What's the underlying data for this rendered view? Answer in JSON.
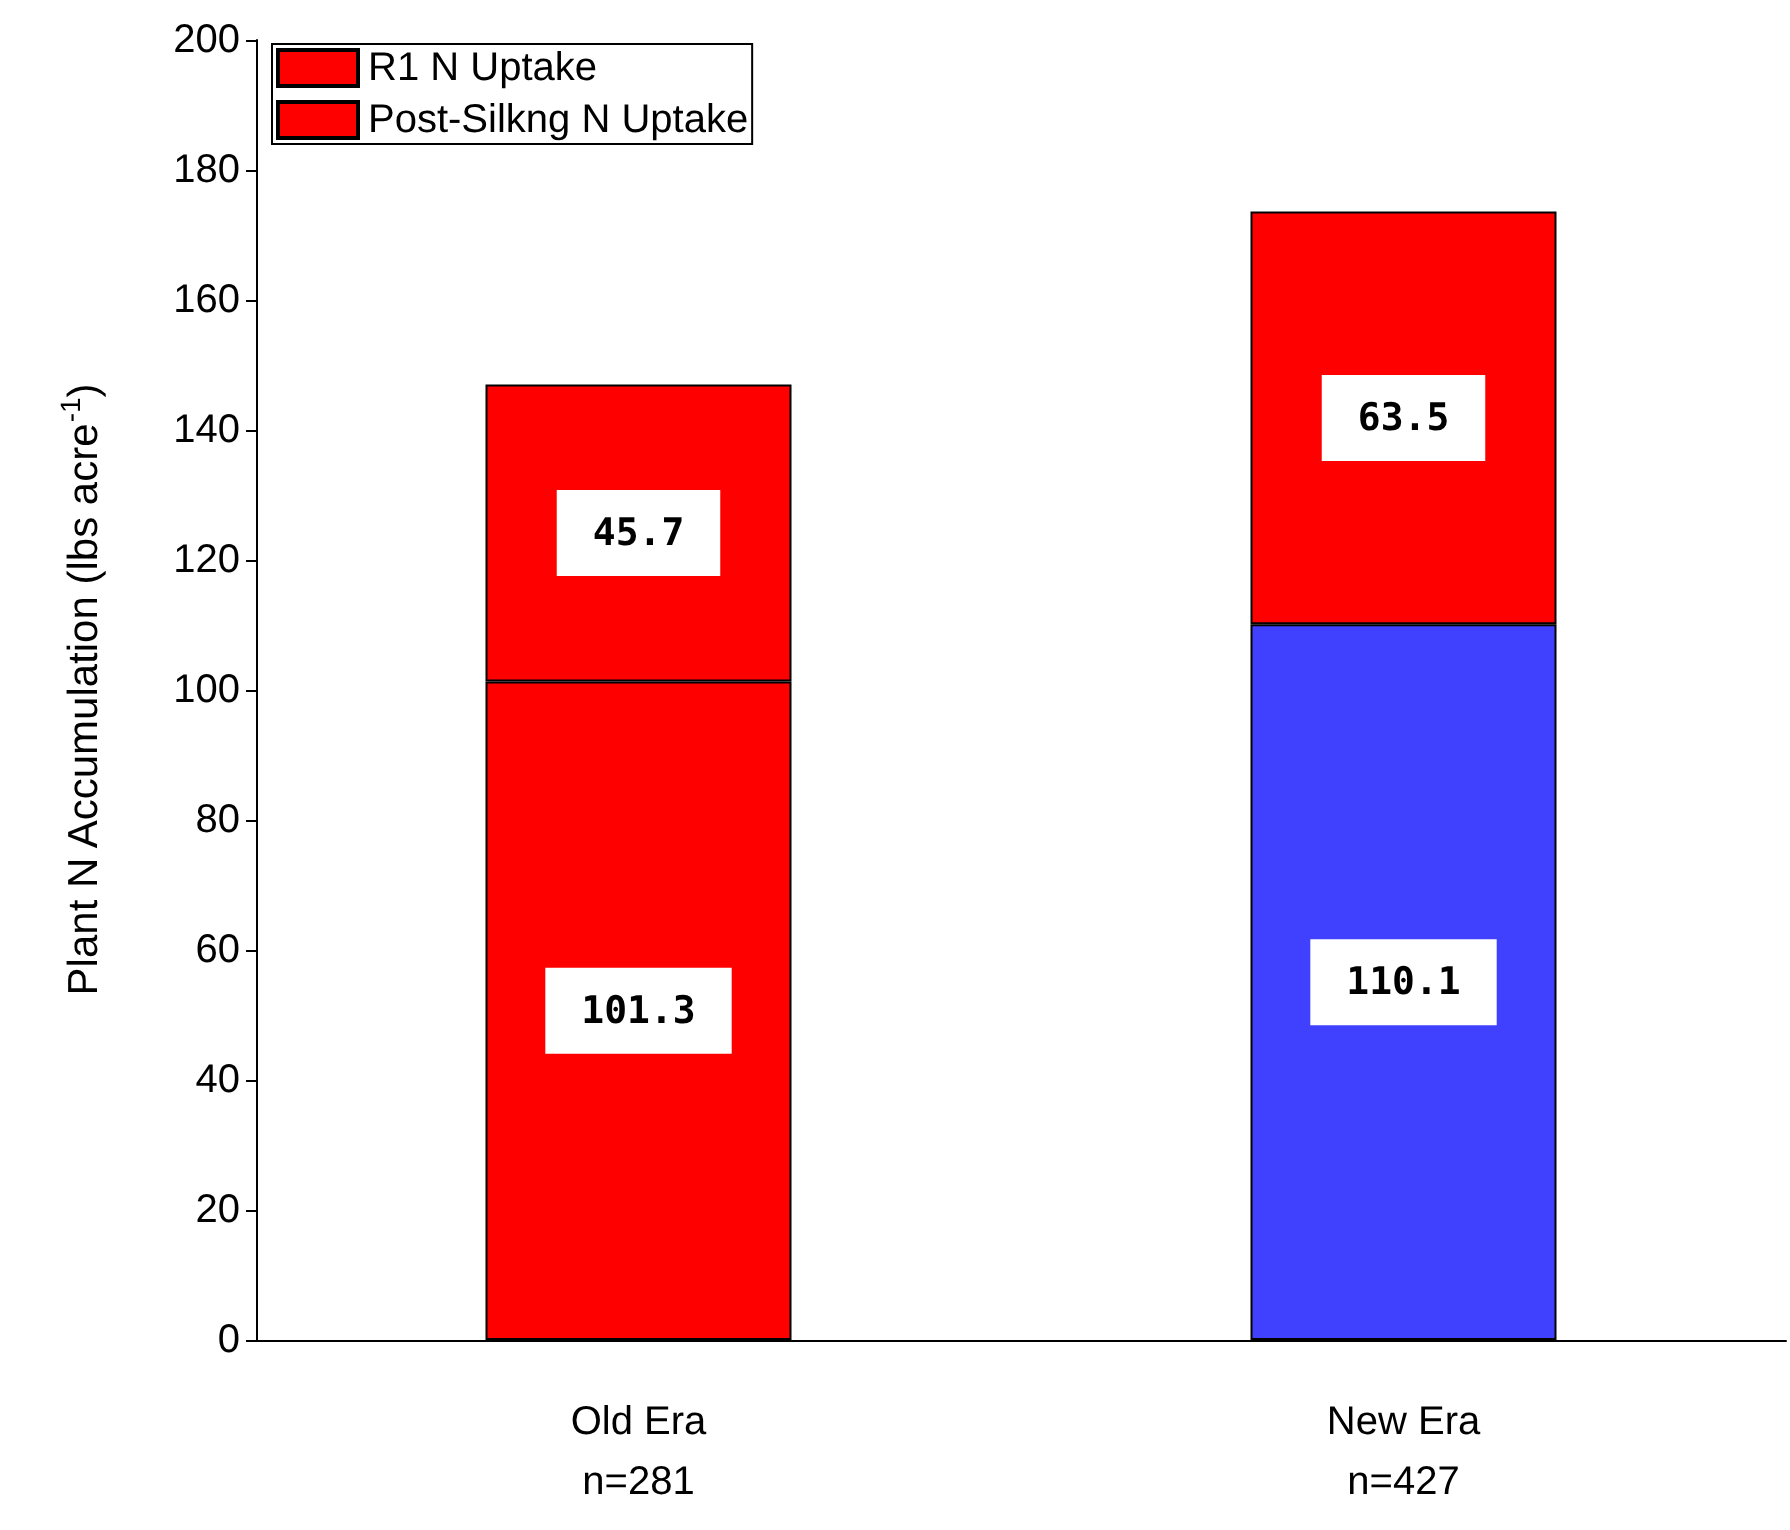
{
  "chart_data": {
    "type": "bar",
    "stacked": true,
    "ylabel": "Plant N Accumulation (lbs acre$^{-1}$)",
    "categories": [
      "Old Era\nn=281",
      "New Era\nn=427"
    ],
    "series": [
      {
        "name": "R1 N Uptake",
        "colors": [
          "#ff0000",
          "#4040ff"
        ],
        "values": [
          101.3,
          110.1
        ]
      },
      {
        "name": "Post-Silkng N Uptake",
        "colors": [
          "#ff0000",
          "#ff0000"
        ],
        "values": [
          45.7,
          63.5
        ]
      }
    ],
    "ylim": [
      0,
      200
    ],
    "yticks": [
      0,
      20,
      40,
      60,
      80,
      100,
      120,
      140,
      160,
      180,
      200
    ],
    "data_labels": true,
    "legend": "top left",
    "grid": false
  }
}
